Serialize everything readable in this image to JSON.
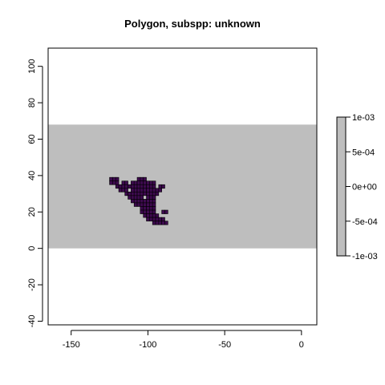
{
  "chart_data": {
    "type": "heatmap",
    "title": "Polygon, subspp: unknown",
    "xlabel": "",
    "ylabel": "",
    "xlim": [
      -165,
      10
    ],
    "ylim": [
      -42,
      110
    ],
    "x_ticks": [
      -150,
      -100,
      -50,
      0
    ],
    "x_tick_labels": [
      "-150",
      "-100",
      "-50",
      "0"
    ],
    "y_ticks": [
      -40,
      -20,
      0,
      20,
      40,
      60,
      80,
      100
    ],
    "y_tick_labels": [
      "-40",
      "-20",
      "0",
      "20",
      "40",
      "60",
      "80",
      "100"
    ],
    "grid": false,
    "raster_extent": {
      "xmin": -165,
      "xmax": 10,
      "ymin": 0,
      "ymax": 68
    },
    "raster_fill_value": 0,
    "polygon_color": "#3d0a4e",
    "polygon_outline_color": "#000000",
    "background_fill_color": "#bebebe",
    "legend": {
      "position": "right",
      "color": "#bebebe",
      "range": [
        -0.001,
        0.001
      ],
      "ticks": [
        0.001,
        0.0005,
        0,
        -0.0005,
        -0.001
      ],
      "tick_labels": [
        "1e-03",
        "5e-04",
        "0e+00",
        "-5e-04",
        "-1e-03"
      ]
    },
    "polygon_cells": [
      [
        -124,
        38
      ],
      [
        -122,
        38
      ],
      [
        -120,
        38
      ],
      [
        -106,
        38
      ],
      [
        -104,
        38
      ],
      [
        -102,
        38
      ],
      [
        -124,
        36
      ],
      [
        -122,
        36
      ],
      [
        -120,
        36
      ],
      [
        -116,
        36
      ],
      [
        -114,
        36
      ],
      [
        -110,
        36
      ],
      [
        -108,
        36
      ],
      [
        -106,
        36
      ],
      [
        -104,
        36
      ],
      [
        -102,
        36
      ],
      [
        -100,
        36
      ],
      [
        -98,
        36
      ],
      [
        -96,
        36
      ],
      [
        -120,
        34
      ],
      [
        -118,
        34
      ],
      [
        -116,
        34
      ],
      [
        -114,
        34
      ],
      [
        -112,
        34
      ],
      [
        -110,
        34
      ],
      [
        -108,
        34
      ],
      [
        -106,
        34
      ],
      [
        -104,
        34
      ],
      [
        -102,
        34
      ],
      [
        -100,
        34
      ],
      [
        -98,
        34
      ],
      [
        -96,
        34
      ],
      [
        -92,
        34
      ],
      [
        -90,
        34
      ],
      [
        -118,
        32
      ],
      [
        -116,
        32
      ],
      [
        -114,
        32
      ],
      [
        -110,
        32
      ],
      [
        -108,
        32
      ],
      [
        -106,
        32
      ],
      [
        -104,
        32
      ],
      [
        -102,
        32
      ],
      [
        -100,
        32
      ],
      [
        -98,
        32
      ],
      [
        -96,
        32
      ],
      [
        -94,
        32
      ],
      [
        -92,
        32
      ],
      [
        -114,
        30
      ],
      [
        -112,
        30
      ],
      [
        -110,
        30
      ],
      [
        -108,
        30
      ],
      [
        -106,
        30
      ],
      [
        -104,
        30
      ],
      [
        -102,
        30
      ],
      [
        -100,
        30
      ],
      [
        -98,
        30
      ],
      [
        -96,
        30
      ],
      [
        -94,
        30
      ],
      [
        -112,
        28
      ],
      [
        -110,
        28
      ],
      [
        -108,
        28
      ],
      [
        -106,
        28
      ],
      [
        -104,
        28
      ],
      [
        -100,
        28
      ],
      [
        -98,
        28
      ],
      [
        -96,
        28
      ],
      [
        -110,
        26
      ],
      [
        -108,
        26
      ],
      [
        -106,
        26
      ],
      [
        -104,
        26
      ],
      [
        -102,
        26
      ],
      [
        -100,
        26
      ],
      [
        -98,
        26
      ],
      [
        -96,
        26
      ],
      [
        -108,
        24
      ],
      [
        -106,
        24
      ],
      [
        -104,
        24
      ],
      [
        -102,
        24
      ],
      [
        -100,
        24
      ],
      [
        -98,
        24
      ],
      [
        -96,
        24
      ],
      [
        -104,
        22
      ],
      [
        -102,
        22
      ],
      [
        -100,
        22
      ],
      [
        -98,
        22
      ],
      [
        -96,
        22
      ],
      [
        -104,
        20
      ],
      [
        -102,
        20
      ],
      [
        -100,
        20
      ],
      [
        -98,
        20
      ],
      [
        -96,
        20
      ],
      [
        -90,
        20
      ],
      [
        -88,
        20
      ],
      [
        -102,
        18
      ],
      [
        -100,
        18
      ],
      [
        -98,
        18
      ],
      [
        -96,
        18
      ],
      [
        -94,
        18
      ],
      [
        -100,
        16
      ],
      [
        -98,
        16
      ],
      [
        -96,
        16
      ],
      [
        -94,
        16
      ],
      [
        -92,
        16
      ],
      [
        -90,
        16
      ],
      [
        -96,
        14
      ],
      [
        -94,
        14
      ],
      [
        -92,
        14
      ],
      [
        -90,
        14
      ],
      [
        -88,
        14
      ]
    ]
  }
}
